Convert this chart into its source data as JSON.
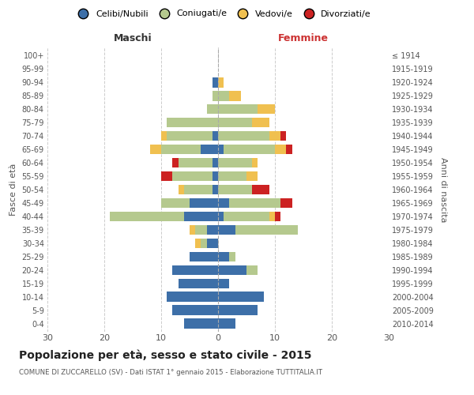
{
  "age_groups": [
    "100+",
    "95-99",
    "90-94",
    "85-89",
    "80-84",
    "75-79",
    "70-74",
    "65-69",
    "60-64",
    "55-59",
    "50-54",
    "45-49",
    "40-44",
    "35-39",
    "30-34",
    "25-29",
    "20-24",
    "15-19",
    "10-14",
    "5-9",
    "0-4"
  ],
  "birth_years": [
    "≤ 1914",
    "1915-1919",
    "1920-1924",
    "1925-1929",
    "1930-1934",
    "1935-1939",
    "1940-1944",
    "1945-1949",
    "1950-1954",
    "1955-1959",
    "1960-1964",
    "1965-1969",
    "1970-1974",
    "1975-1979",
    "1980-1984",
    "1985-1989",
    "1990-1994",
    "1995-1999",
    "2000-2004",
    "2005-2009",
    "2010-2014"
  ],
  "male": {
    "celibi": [
      0,
      0,
      1,
      0,
      0,
      0,
      1,
      3,
      1,
      1,
      1,
      5,
      6,
      2,
      2,
      5,
      8,
      7,
      9,
      8,
      6
    ],
    "coniugati": [
      0,
      0,
      0,
      1,
      2,
      9,
      8,
      7,
      6,
      7,
      5,
      5,
      13,
      2,
      1,
      0,
      0,
      0,
      0,
      0,
      0
    ],
    "vedovi": [
      0,
      0,
      0,
      0,
      0,
      0,
      1,
      2,
      0,
      0,
      1,
      0,
      0,
      1,
      1,
      0,
      0,
      0,
      0,
      0,
      0
    ],
    "divorziati": [
      0,
      0,
      0,
      0,
      0,
      0,
      0,
      0,
      1,
      2,
      0,
      0,
      0,
      0,
      0,
      0,
      0,
      0,
      0,
      0,
      0
    ]
  },
  "female": {
    "nubili": [
      0,
      0,
      0,
      0,
      0,
      0,
      0,
      1,
      0,
      0,
      0,
      2,
      1,
      3,
      0,
      2,
      5,
      2,
      8,
      7,
      3
    ],
    "coniugate": [
      0,
      0,
      0,
      2,
      7,
      6,
      9,
      9,
      6,
      5,
      6,
      9,
      8,
      11,
      0,
      1,
      2,
      0,
      0,
      0,
      0
    ],
    "vedove": [
      0,
      0,
      1,
      2,
      3,
      3,
      2,
      2,
      1,
      2,
      0,
      0,
      1,
      0,
      0,
      0,
      0,
      0,
      0,
      0,
      0
    ],
    "divorziate": [
      0,
      0,
      0,
      0,
      0,
      0,
      1,
      1,
      0,
      0,
      3,
      2,
      1,
      0,
      0,
      0,
      0,
      0,
      0,
      0,
      0
    ]
  },
  "colors": {
    "celibi": "#3d6fa8",
    "coniugati": "#b5c98e",
    "vedovi": "#f0c050",
    "divorziati": "#cc2222"
  },
  "title": "Popolazione per età, sesso e stato civile - 2015",
  "subtitle": "COMUNE DI ZUCCARELLO (SV) - Dati ISTAT 1° gennaio 2015 - Elaborazione TUTTITALIA.IT",
  "xlabel_left": "Maschi",
  "xlabel_right": "Femmine",
  "ylabel_left": "Fasce di età",
  "ylabel_right": "Anni di nascita",
  "xlim": 30,
  "legend_labels": [
    "Celibi/Nubili",
    "Coniugati/e",
    "Vedovi/e",
    "Divorziati/e"
  ]
}
